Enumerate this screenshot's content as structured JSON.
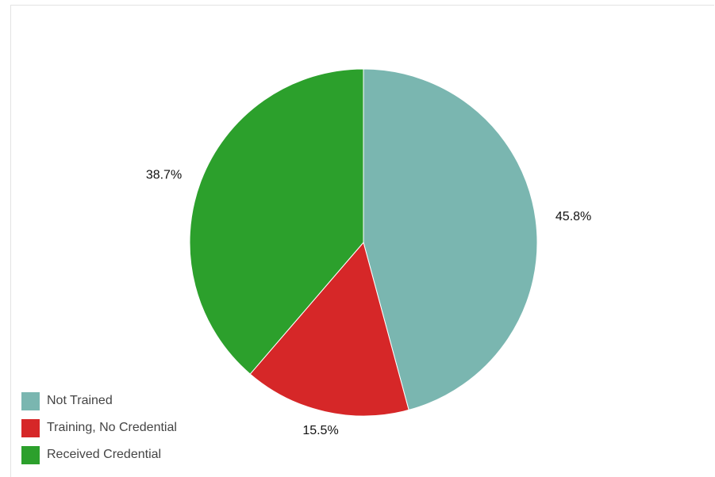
{
  "chart_data": {
    "type": "pie",
    "title": "",
    "legend_position": "bottom-left",
    "slices": [
      {
        "name": "Not Trained",
        "value": 45.8,
        "label": "45.8%",
        "color": "#7ab6b0"
      },
      {
        "name": "Training, No Credential",
        "value": 15.5,
        "label": "15.5%",
        "color": "#d62728"
      },
      {
        "name": "Received Credential",
        "value": 38.7,
        "label": "38.7%",
        "color": "#2ca02c"
      }
    ]
  }
}
